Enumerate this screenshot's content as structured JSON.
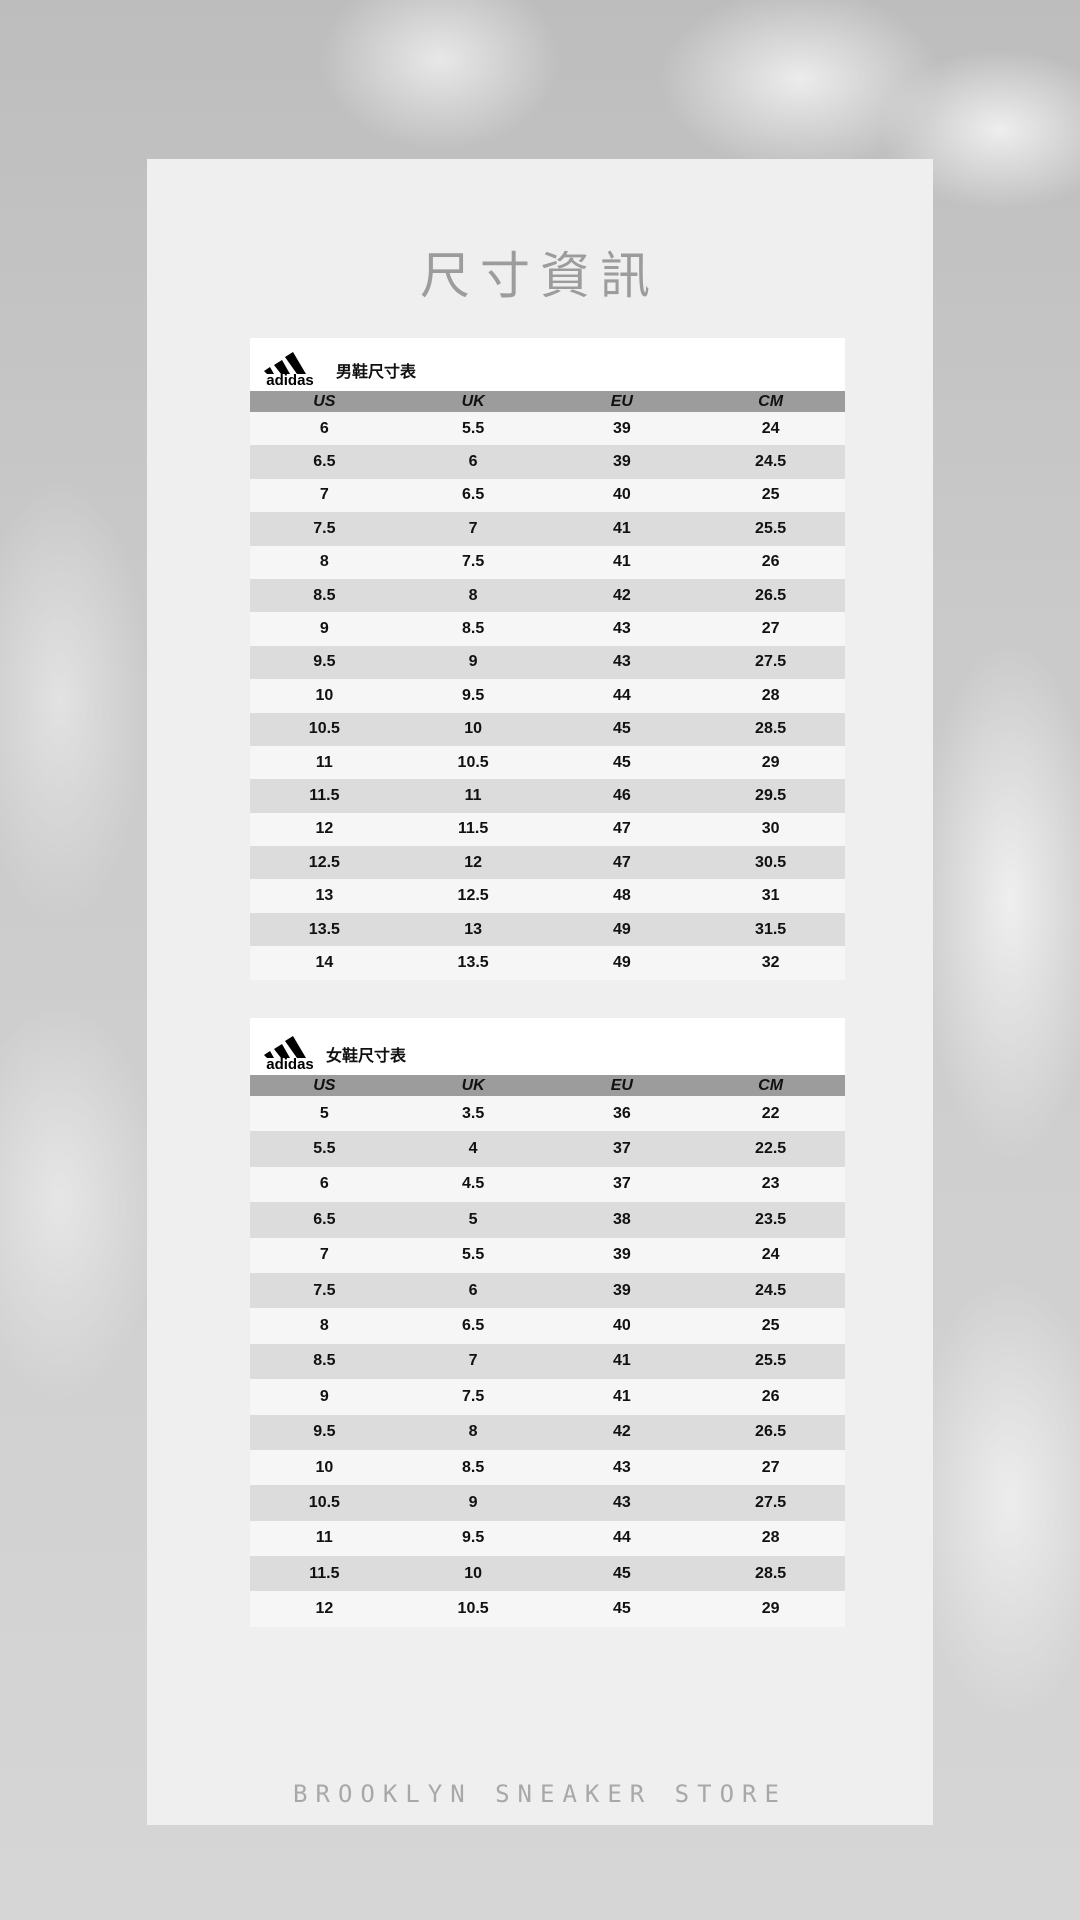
{
  "title": "尺寸資訊",
  "brand_logo": "adidas",
  "columns": [
    "US",
    "UK",
    "EU",
    "CM"
  ],
  "men": {
    "label": "男鞋尺寸表",
    "rows": [
      [
        "6",
        "5.5",
        "39",
        "24"
      ],
      [
        "6.5",
        "6",
        "39",
        "24.5"
      ],
      [
        "7",
        "6.5",
        "40",
        "25"
      ],
      [
        "7.5",
        "7",
        "41",
        "25.5"
      ],
      [
        "8",
        "7.5",
        "41",
        "26"
      ],
      [
        "8.5",
        "8",
        "42",
        "26.5"
      ],
      [
        "9",
        "8.5",
        "43",
        "27"
      ],
      [
        "9.5",
        "9",
        "43",
        "27.5"
      ],
      [
        "10",
        "9.5",
        "44",
        "28"
      ],
      [
        "10.5",
        "10",
        "45",
        "28.5"
      ],
      [
        "11",
        "10.5",
        "45",
        "29"
      ],
      [
        "11.5",
        "11",
        "46",
        "29.5"
      ],
      [
        "12",
        "11.5",
        "47",
        "30"
      ],
      [
        "12.5",
        "12",
        "47",
        "30.5"
      ],
      [
        "13",
        "12.5",
        "48",
        "31"
      ],
      [
        "13.5",
        "13",
        "49",
        "31.5"
      ],
      [
        "14",
        "13.5",
        "49",
        "32"
      ]
    ]
  },
  "women": {
    "label": "女鞋尺寸表",
    "rows": [
      [
        "5",
        "3.5",
        "36",
        "22"
      ],
      [
        "5.5",
        "4",
        "37",
        "22.5"
      ],
      [
        "6",
        "4.5",
        "37",
        "23"
      ],
      [
        "6.5",
        "5",
        "38",
        "23.5"
      ],
      [
        "7",
        "5.5",
        "39",
        "24"
      ],
      [
        "7.5",
        "6",
        "39",
        "24.5"
      ],
      [
        "8",
        "6.5",
        "40",
        "25"
      ],
      [
        "8.5",
        "7",
        "41",
        "25.5"
      ],
      [
        "9",
        "7.5",
        "41",
        "26"
      ],
      [
        "9.5",
        "8",
        "42",
        "26.5"
      ],
      [
        "10",
        "8.5",
        "43",
        "27"
      ],
      [
        "10.5",
        "9",
        "43",
        "27.5"
      ],
      [
        "11",
        "9.5",
        "44",
        "28"
      ],
      [
        "11.5",
        "10",
        "45",
        "28.5"
      ],
      [
        "12",
        "10.5",
        "45",
        "29"
      ]
    ]
  },
  "footer": "BROOKLYN SNEAKER STORE"
}
